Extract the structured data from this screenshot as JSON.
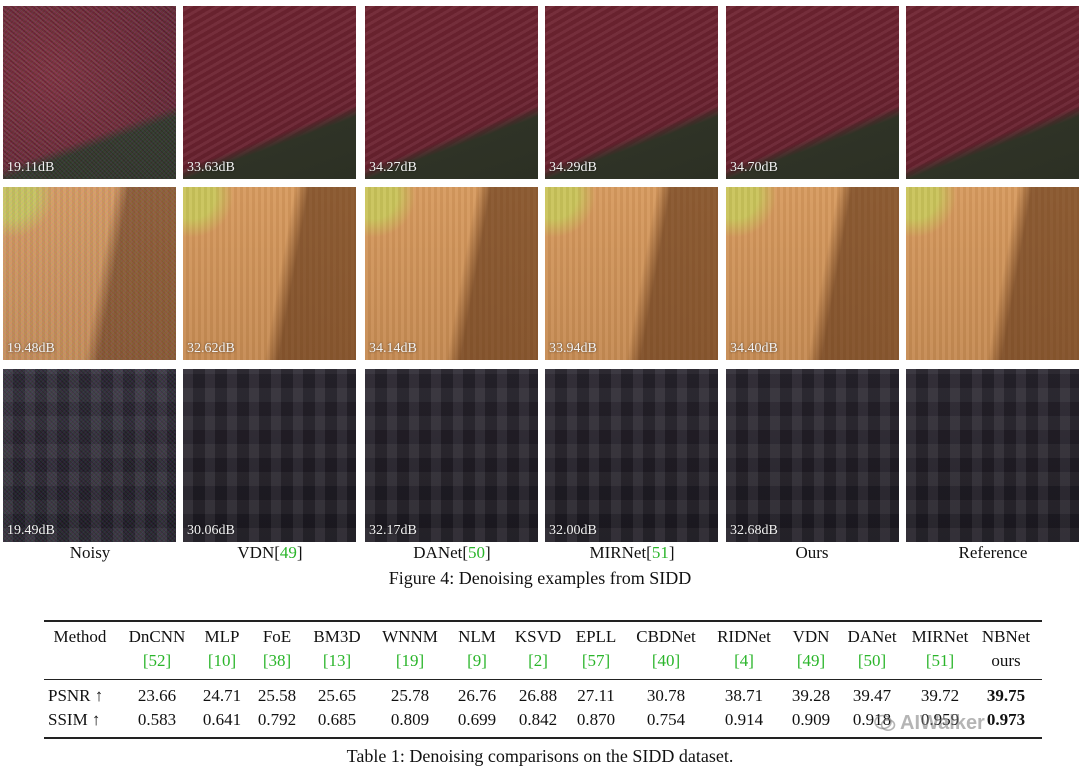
{
  "figure": {
    "column_labels": [
      {
        "text": "Noisy",
        "ref": ""
      },
      {
        "text": "VDN[",
        "ref": "49",
        "close": "]"
      },
      {
        "text": "DANet[",
        "ref": "50",
        "close": "]"
      },
      {
        "text": "MIRNet[",
        "ref": "51",
        "close": "]"
      },
      {
        "text": "Ours",
        "ref": ""
      },
      {
        "text": "Reference",
        "ref": ""
      }
    ],
    "rows": [
      {
        "psnr": [
          "19.11dB",
          "33.63dB",
          "34.27dB",
          "34.29dB",
          "34.70dB",
          ""
        ]
      },
      {
        "psnr": [
          "19.48dB",
          "32.62dB",
          "34.14dB",
          "33.94dB",
          "34.40dB",
          ""
        ]
      },
      {
        "psnr": [
          "19.49dB",
          "30.06dB",
          "32.17dB",
          "32.00dB",
          "32.68dB",
          ""
        ]
      }
    ],
    "caption": "Figure 4: Denoising examples from SIDD"
  },
  "table": {
    "header": [
      "Method",
      "DnCNN",
      "MLP",
      "FoE",
      "BM3D",
      "WNNM",
      "NLM",
      "KSVD",
      "EPLL",
      "CBDNet",
      "RIDNet",
      "VDN",
      "DANet",
      "MIRNet",
      "NBNet"
    ],
    "refs": [
      "",
      "[52]",
      "[10]",
      "[38]",
      "[13]",
      "[19]",
      "[9]",
      "[2]",
      "[57]",
      "[40]",
      "[4]",
      "[49]",
      "[50]",
      "[51]",
      "ours"
    ],
    "psnr_label": "PSNR ↑",
    "ssim_label": "SSIM ↑",
    "psnr": [
      "23.66",
      "24.71",
      "25.58",
      "25.65",
      "25.78",
      "26.76",
      "26.88",
      "27.11",
      "30.78",
      "38.71",
      "39.28",
      "39.47",
      "39.72",
      "39.75"
    ],
    "ssim": [
      "0.583",
      "0.641",
      "0.792",
      "0.685",
      "0.809",
      "0.699",
      "0.842",
      "0.870",
      "0.754",
      "0.914",
      "0.909",
      "0.918",
      "0.959",
      "0.973"
    ],
    "caption": "Table 1: Denoising comparisons on the SIDD dataset."
  },
  "watermark": "AIWalker",
  "colors": {
    "citation": "#2ab52a"
  }
}
